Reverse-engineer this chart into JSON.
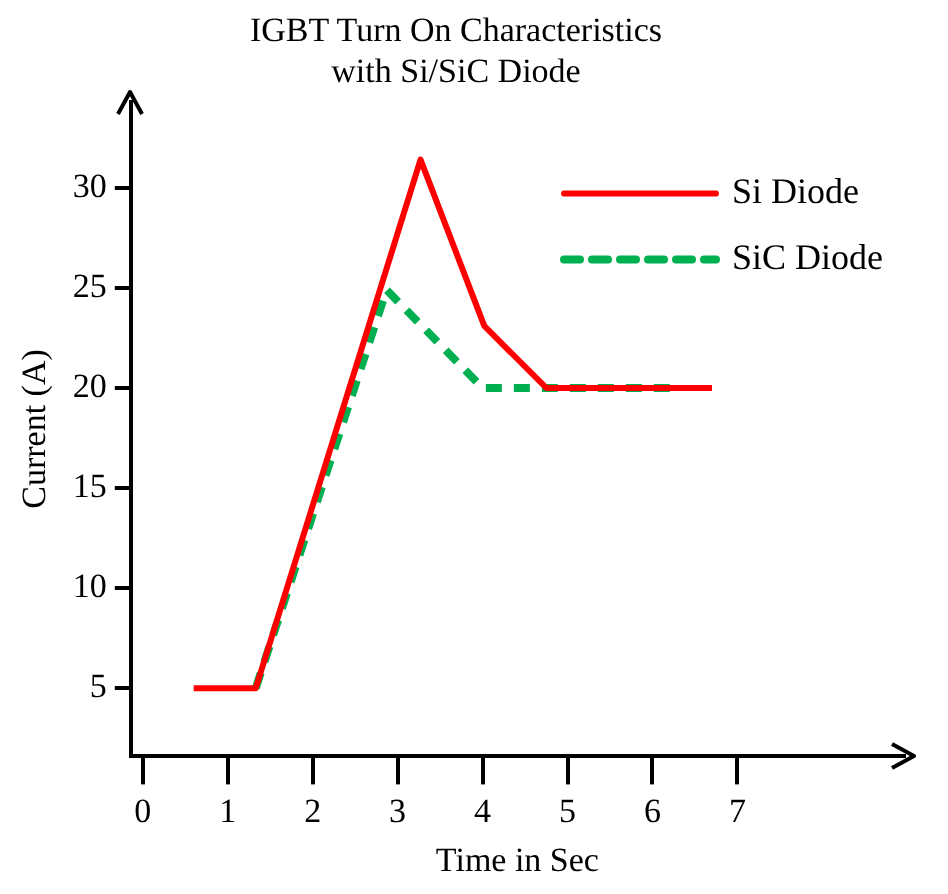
{
  "chart_data": {
    "type": "line",
    "title": "IGBT Turn On Characteristics\nwith Si/SiC Diode",
    "xlabel": "Time in Sec",
    "ylabel": "Current (A)",
    "xlim": [
      -0.14,
      8.96
    ],
    "xticks": [
      0,
      1,
      2,
      3,
      4,
      5,
      6,
      7
    ],
    "ylim": [
      1.6,
      34.3
    ],
    "yticks": [
      5,
      10,
      15,
      20,
      25,
      30
    ],
    "grid": false,
    "legend": "top right",
    "marker": "none",
    "series": [
      {
        "name": "Si Diode",
        "color": "#ff0000",
        "line_style": "solid",
        "x": [
          0.6,
          1.33,
          3.27,
          4.02,
          4.75,
          6.7
        ],
        "values": [
          5,
          5,
          31.4,
          23.1,
          20,
          20
        ]
      },
      {
        "name": "SiC Diode",
        "color": "#00b050",
        "line_style": "dashed",
        "x": [
          1.33,
          2.87,
          4.0,
          6.28
        ],
        "values": [
          5,
          24.9,
          20,
          20
        ]
      }
    ]
  }
}
